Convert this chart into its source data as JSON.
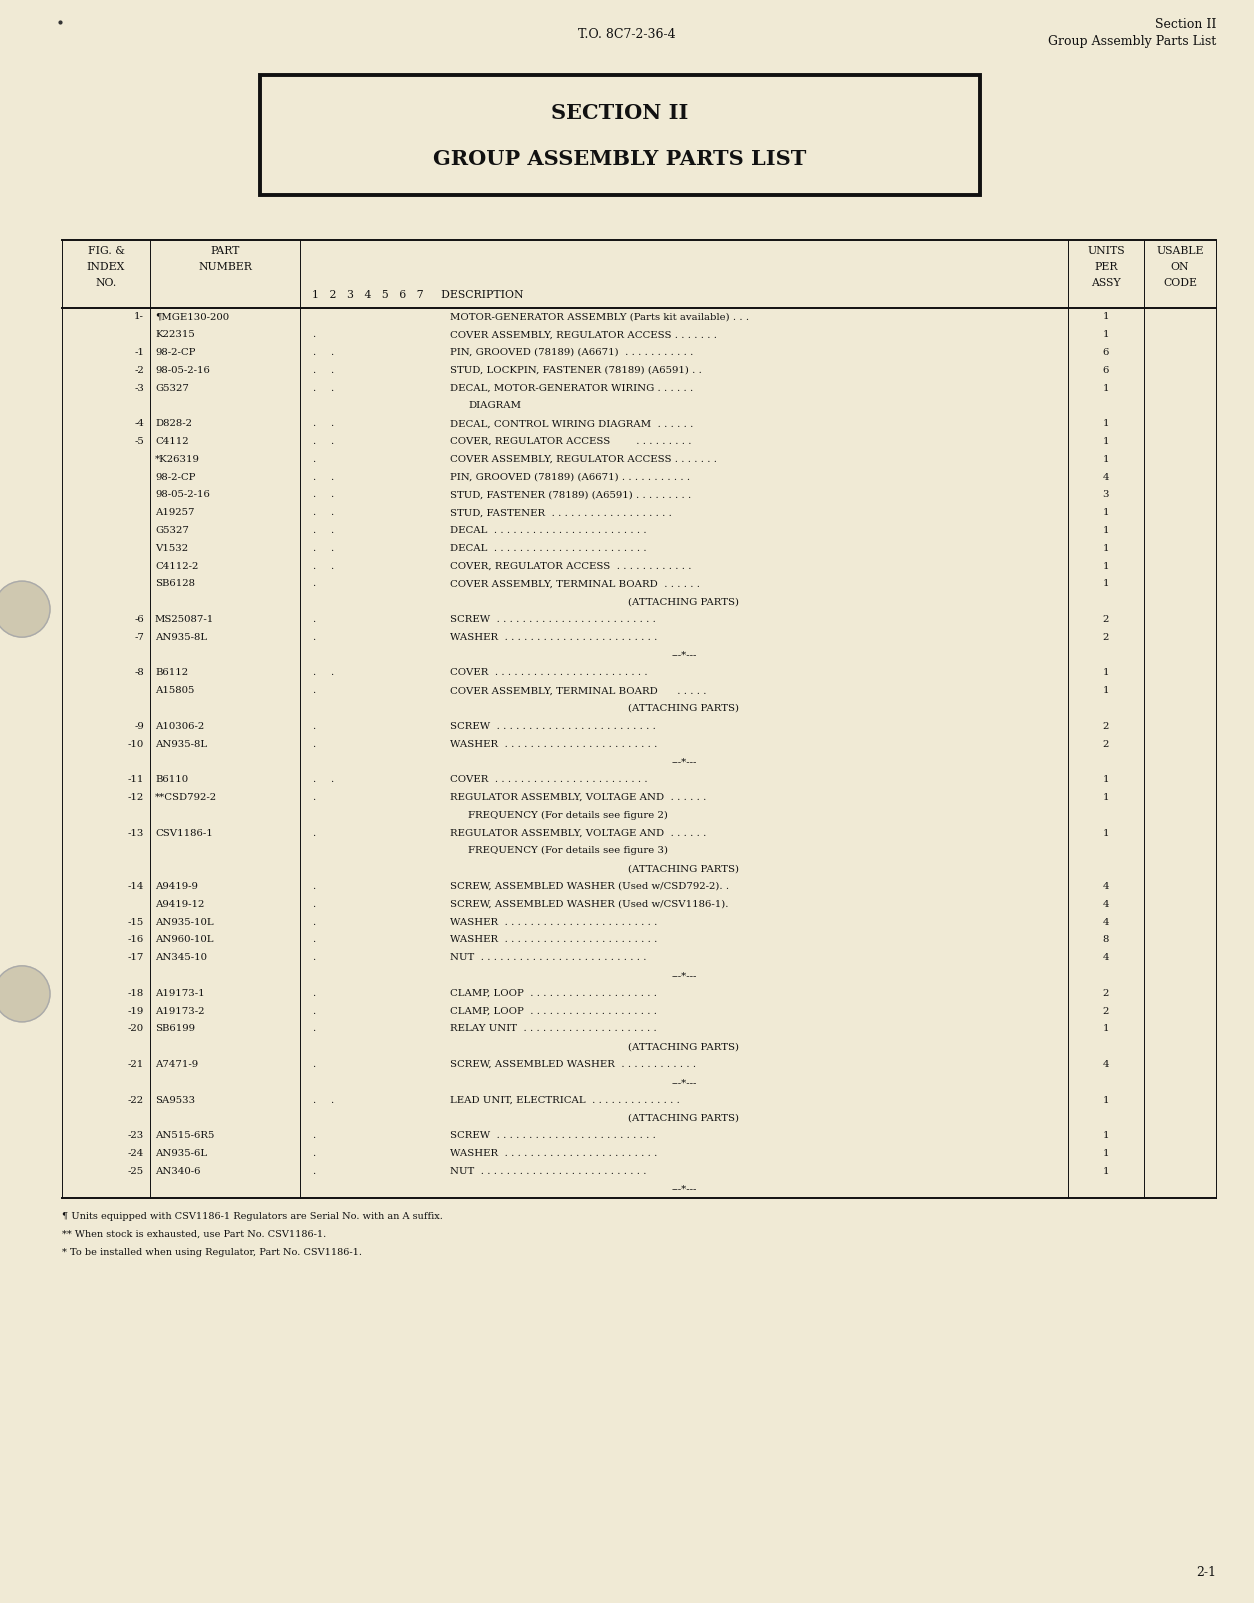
{
  "page_color": "#f0ead5",
  "header_center": "T.O. 8C7-2-36-4",
  "header_right_line1": "Section II",
  "header_right_line2": "Group Assembly Parts List",
  "section_title_line1": "SECTION II",
  "section_title_line2": "GROUP ASSEMBLY PARTS LIST",
  "footer_num": "2-1",
  "footnotes": [
    "¶ Units equipped with CSV1186-1 Regulators are Serial No. with an A suffix.",
    "** When stock is exhausted, use Part No. CSV1186-1.",
    "* To be installed when using Regulator, Part No. CSV1186-1."
  ],
  "rows": [
    {
      "fig": "1-",
      "part": "¶MGE130-200",
      "dots": 0,
      "desc": "MOTOR-GENERATOR ASSEMBLY (Parts kit available) . . .",
      "qty": "1"
    },
    {
      "fig": "",
      "part": "K22315",
      "dots": 1,
      "desc": "COVER ASSEMBLY, REGULATOR ACCESS . . . . . . .",
      "qty": "1"
    },
    {
      "fig": "-1",
      "part": "98-2-CP",
      "dots": 2,
      "desc": "PIN, GROOVED (78189) (A6671)  . . . . . . . . . . .",
      "qty": "6"
    },
    {
      "fig": "-2",
      "part": "98-05-2-16",
      "dots": 2,
      "desc": "STUD, LOCKPIN, FASTENER (78189) (A6591) . .",
      "qty": "6"
    },
    {
      "fig": "-3",
      "part": "G5327",
      "dots": 2,
      "desc": "DECAL, MOTOR-GENERATOR WIRING . . . . . .",
      "qty": "1"
    },
    {
      "fig": "",
      "part": "",
      "dots": -1,
      "desc": "DIAGRAM",
      "qty": ""
    },
    {
      "fig": "-4",
      "part": "D828-2",
      "dots": 2,
      "desc": "DECAL, CONTROL WIRING DIAGRAM  . . . . . .",
      "qty": "1"
    },
    {
      "fig": "-5",
      "part": "C4112",
      "dots": 2,
      "desc": "COVER, REGULATOR ACCESS        . . . . . . . . .",
      "qty": "1"
    },
    {
      "fig": "",
      "part": "*K26319",
      "dots": 1,
      "desc": "COVER ASSEMBLY, REGULATOR ACCESS . . . . . . .",
      "qty": "1"
    },
    {
      "fig": "",
      "part": "98-2-CP",
      "dots": 2,
      "desc": "PIN, GROOVED (78189) (A6671) . . . . . . . . . . .",
      "qty": "4"
    },
    {
      "fig": "",
      "part": "98-05-2-16",
      "dots": 2,
      "desc": "STUD, FASTENER (78189) (A6591) . . . . . . . . .",
      "qty": "3"
    },
    {
      "fig": "",
      "part": "A19257",
      "dots": 2,
      "desc": "STUD, FASTENER  . . . . . . . . . . . . . . . . . . .",
      "qty": "1"
    },
    {
      "fig": "",
      "part": "G5327",
      "dots": 2,
      "desc": "DECAL  . . . . . . . . . . . . . . . . . . . . . . . .",
      "qty": "1"
    },
    {
      "fig": "",
      "part": "V1532",
      "dots": 2,
      "desc": "DECAL  . . . . . . . . . . . . . . . . . . . . . . . .",
      "qty": "1"
    },
    {
      "fig": "",
      "part": "C4112-2",
      "dots": 2,
      "desc": "COVER, REGULATOR ACCESS  . . . . . . . . . . . .",
      "qty": "1"
    },
    {
      "fig": "",
      "part": "SB6128",
      "dots": 1,
      "desc": "COVER ASSEMBLY, TERMINAL BOARD  . . . . . .",
      "qty": "1"
    },
    {
      "fig": "",
      "part": "",
      "dots": -2,
      "desc": "(ATTACHING PARTS)",
      "qty": ""
    },
    {
      "fig": "-6",
      "part": "MS25087-1",
      "dots": 1,
      "desc": "SCREW  . . . . . . . . . . . . . . . . . . . . . . . . .",
      "qty": "2"
    },
    {
      "fig": "-7",
      "part": "AN935-8L",
      "dots": 1,
      "desc": "WASHER  . . . . . . . . . . . . . . . . . . . . . . . .",
      "qty": "2"
    },
    {
      "fig": "",
      "part": "",
      "dots": -3,
      "desc": "---*---",
      "qty": ""
    },
    {
      "fig": "-8",
      "part": "B6112",
      "dots": 2,
      "desc": "COVER  . . . . . . . . . . . . . . . . . . . . . . . .",
      "qty": "1"
    },
    {
      "fig": "",
      "part": "A15805",
      "dots": 1,
      "desc": "COVER ASSEMBLY, TERMINAL BOARD      . . . . .",
      "qty": "1"
    },
    {
      "fig": "",
      "part": "",
      "dots": -2,
      "desc": "(ATTACHING PARTS)",
      "qty": ""
    },
    {
      "fig": "-9",
      "part": "A10306-2",
      "dots": 1,
      "desc": "SCREW  . . . . . . . . . . . . . . . . . . . . . . . . .",
      "qty": "2"
    },
    {
      "fig": "-10",
      "part": "AN935-8L",
      "dots": 1,
      "desc": "WASHER  . . . . . . . . . . . . . . . . . . . . . . . .",
      "qty": "2"
    },
    {
      "fig": "",
      "part": "",
      "dots": -3,
      "desc": "---*---",
      "qty": ""
    },
    {
      "fig": "-11",
      "part": "B6110",
      "dots": 2,
      "desc": "COVER  . . . . . . . . . . . . . . . . . . . . . . . .",
      "qty": "1"
    },
    {
      "fig": "-12",
      "part": "**CSD792-2",
      "dots": 1,
      "desc": "REGULATOR ASSEMBLY, VOLTAGE AND  . . . . . .",
      "qty": "1"
    },
    {
      "fig": "",
      "part": "",
      "dots": -4,
      "desc": "FREQUENCY (For details see figure 2)",
      "qty": ""
    },
    {
      "fig": "-13",
      "part": "CSV1186-1",
      "dots": 1,
      "desc": "REGULATOR ASSEMBLY, VOLTAGE AND  . . . . . .",
      "qty": "1"
    },
    {
      "fig": "",
      "part": "",
      "dots": -4,
      "desc": "FREQUENCY (For details see figure 3)",
      "qty": ""
    },
    {
      "fig": "",
      "part": "",
      "dots": -2,
      "desc": "(ATTACHING PARTS)",
      "qty": ""
    },
    {
      "fig": "-14",
      "part": "A9419-9",
      "dots": 1,
      "desc": "SCREW, ASSEMBLED WASHER (Used w/CSD792-2). .",
      "qty": "4"
    },
    {
      "fig": "",
      "part": "A9419-12",
      "dots": 1,
      "desc": "SCREW, ASSEMBLED WASHER (Used w/CSV1186-1).",
      "qty": "4"
    },
    {
      "fig": "-15",
      "part": "AN935-10L",
      "dots": 1,
      "desc": "WASHER  . . . . . . . . . . . . . . . . . . . . . . . .",
      "qty": "4"
    },
    {
      "fig": "-16",
      "part": "AN960-10L",
      "dots": 1,
      "desc": "WASHER  . . . . . . . . . . . . . . . . . . . . . . . .",
      "qty": "8"
    },
    {
      "fig": "-17",
      "part": "AN345-10",
      "dots": 1,
      "desc": "NUT  . . . . . . . . . . . . . . . . . . . . . . . . . .",
      "qty": "4"
    },
    {
      "fig": "",
      "part": "",
      "dots": -3,
      "desc": "---*---",
      "qty": ""
    },
    {
      "fig": "-18",
      "part": "A19173-1",
      "dots": 1,
      "desc": "CLAMP, LOOP  . . . . . . . . . . . . . . . . . . . .",
      "qty": "2"
    },
    {
      "fig": "-19",
      "part": "A19173-2",
      "dots": 1,
      "desc": "CLAMP, LOOP  . . . . . . . . . . . . . . . . . . . .",
      "qty": "2"
    },
    {
      "fig": "-20",
      "part": "SB6199",
      "dots": 1,
      "desc": "RELAY UNIT  . . . . . . . . . . . . . . . . . . . . .",
      "qty": "1"
    },
    {
      "fig": "",
      "part": "",
      "dots": -2,
      "desc": "(ATTACHING PARTS)",
      "qty": ""
    },
    {
      "fig": "-21",
      "part": "A7471-9",
      "dots": 1,
      "desc": "SCREW, ASSEMBLED WASHER  . . . . . . . . . . . .",
      "qty": "4"
    },
    {
      "fig": "",
      "part": "",
      "dots": -3,
      "desc": "---*---",
      "qty": ""
    },
    {
      "fig": "-22",
      "part": "SA9533",
      "dots": 2,
      "desc": "LEAD UNIT, ELECTRICAL  . . . . . . . . . . . . . .",
      "qty": "1"
    },
    {
      "fig": "",
      "part": "",
      "dots": -2,
      "desc": "(ATTACHING PARTS)",
      "qty": ""
    },
    {
      "fig": "-23",
      "part": "AN515-6R5",
      "dots": 1,
      "desc": "SCREW  . . . . . . . . . . . . . . . . . . . . . . . . .",
      "qty": "1"
    },
    {
      "fig": "-24",
      "part": "AN935-6L",
      "dots": 1,
      "desc": "WASHER  . . . . . . . . . . . . . . . . . . . . . . . .",
      "qty": "1"
    },
    {
      "fig": "-25",
      "part": "AN340-6",
      "dots": 1,
      "desc": "NUT  . . . . . . . . . . . . . . . . . . . . . . . . . .",
      "qty": "1"
    },
    {
      "fig": "",
      "part": "",
      "dots": -3,
      "desc": "---*---",
      "qty": ""
    }
  ]
}
